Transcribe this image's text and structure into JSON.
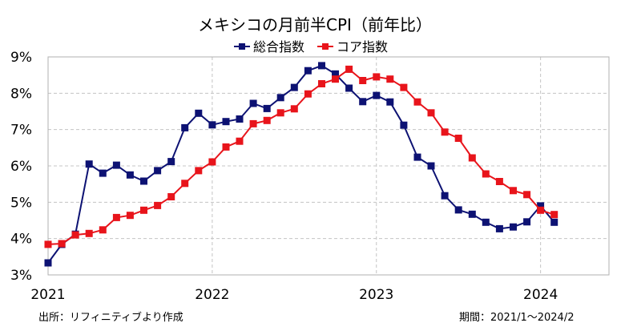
{
  "chart_data": {
    "type": "line",
    "title": "メキシコの月前半CPI（前年比）",
    "xlabel": "",
    "ylabel": "",
    "x_tick_labels": [
      "2021",
      "2022",
      "2023",
      "2024"
    ],
    "y_tick_labels": [
      "3%",
      "4%",
      "5%",
      "6%",
      "7%",
      "8%",
      "9%"
    ],
    "ylim": [
      3,
      9
    ],
    "xlim": [
      "2021/1",
      "2024/6"
    ],
    "grid": true,
    "legend_position": "top",
    "x": [
      "2021/1",
      "2021/2",
      "2021/3",
      "2021/4",
      "2021/5",
      "2021/6",
      "2021/7",
      "2021/8",
      "2021/9",
      "2021/10",
      "2021/11",
      "2021/12",
      "2022/1",
      "2022/2",
      "2022/3",
      "2022/4",
      "2022/5",
      "2022/6",
      "2022/7",
      "2022/8",
      "2022/9",
      "2022/10",
      "2022/11",
      "2022/12",
      "2023/1",
      "2023/2",
      "2023/3",
      "2023/4",
      "2023/5",
      "2023/6",
      "2023/7",
      "2023/8",
      "2023/9",
      "2023/10",
      "2023/11",
      "2023/12",
      "2024/1",
      "2024/2"
    ],
    "series": [
      {
        "name": "総合指数",
        "color": "#0d1273",
        "values": [
          3.33,
          3.84,
          4.12,
          6.05,
          5.8,
          6.02,
          5.75,
          5.58,
          5.87,
          6.12,
          7.05,
          7.45,
          7.13,
          7.22,
          7.29,
          7.72,
          7.58,
          7.88,
          8.16,
          8.62,
          8.76,
          8.53,
          8.14,
          7.77,
          7.94,
          7.76,
          7.12,
          6.24,
          6.0,
          5.18,
          4.79,
          4.67,
          4.45,
          4.27,
          4.32,
          4.46,
          4.9,
          4.45
        ]
      },
      {
        "name": "コア指数",
        "color": "#e8141b",
        "values": [
          3.84,
          3.86,
          4.1,
          4.14,
          4.24,
          4.58,
          4.64,
          4.78,
          4.91,
          5.15,
          5.52,
          5.87,
          6.11,
          6.52,
          6.68,
          7.16,
          7.25,
          7.46,
          7.57,
          7.98,
          8.26,
          8.39,
          8.66,
          8.35,
          8.45,
          8.39,
          8.16,
          7.76,
          7.46,
          6.93,
          6.76,
          6.22,
          5.78,
          5.57,
          5.32,
          5.21,
          4.78,
          4.66
        ]
      }
    ]
  },
  "notes": {
    "source": "出所：リフィニティブより作成",
    "period": "期間：2021/1～2024/2"
  }
}
